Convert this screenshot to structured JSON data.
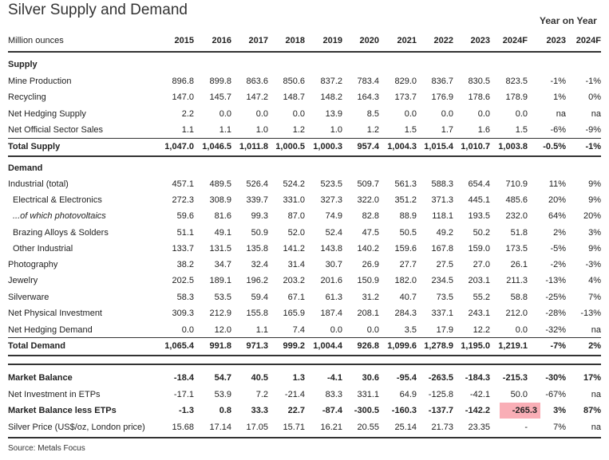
{
  "title": "Silver Supply and Demand",
  "yoy_header": "Year on Year",
  "header": {
    "label": "Million ounces",
    "years": [
      "2015",
      "2016",
      "2017",
      "2018",
      "2019",
      "2020",
      "2021",
      "2022",
      "2023",
      "2024F"
    ],
    "yoy": [
      "2023",
      "2024F"
    ]
  },
  "rows": [
    {
      "type": "section",
      "label": "Supply"
    },
    {
      "type": "data",
      "label": "Mine Production",
      "values": [
        "896.8",
        "899.8",
        "863.6",
        "850.6",
        "837.2",
        "783.4",
        "829.0",
        "836.7",
        "830.5",
        "823.5"
      ],
      "yoy": [
        "-1%",
        "-1%"
      ]
    },
    {
      "type": "data",
      "label": "Recycling",
      "values": [
        "147.0",
        "145.7",
        "147.2",
        "148.7",
        "148.2",
        "164.3",
        "173.7",
        "176.9",
        "178.6",
        "178.9"
      ],
      "yoy": [
        "1%",
        "0%"
      ]
    },
    {
      "type": "data",
      "label": "Net Hedging Supply",
      "values": [
        "2.2",
        "0.0",
        "0.0",
        "0.0",
        "13.9",
        "8.5",
        "0.0",
        "0.0",
        "0.0",
        "0.0"
      ],
      "yoy": [
        "na",
        "na"
      ]
    },
    {
      "type": "data",
      "label": "Net Official Sector Sales",
      "values": [
        "1.1",
        "1.1",
        "1.0",
        "1.2",
        "1.0",
        "1.2",
        "1.5",
        "1.7",
        "1.6",
        "1.5"
      ],
      "yoy": [
        "-6%",
        "-9%"
      ]
    },
    {
      "type": "total",
      "label": "Total Supply",
      "values": [
        "1,047.0",
        "1,046.5",
        "1,011.8",
        "1,000.5",
        "1,000.3",
        "957.4",
        "1,004.3",
        "1,015.4",
        "1,010.7",
        "1,003.8"
      ],
      "yoy": [
        "-0.5%",
        "-1%"
      ]
    },
    {
      "type": "section",
      "label": "Demand"
    },
    {
      "type": "data",
      "label": "Industrial (total)",
      "values": [
        "457.1",
        "489.5",
        "526.4",
        "524.2",
        "523.5",
        "509.7",
        "561.3",
        "588.3",
        "654.4",
        "710.9"
      ],
      "yoy": [
        "11%",
        "9%"
      ]
    },
    {
      "type": "sub",
      "label": "Electrical & Electronics",
      "values": [
        "272.3",
        "308.9",
        "339.7",
        "331.0",
        "327.3",
        "322.0",
        "351.2",
        "371.3",
        "445.1",
        "485.6"
      ],
      "yoy": [
        "20%",
        "9%"
      ]
    },
    {
      "type": "subitalic",
      "label": "...of which photovoltaics",
      "values": [
        "59.6",
        "81.6",
        "99.3",
        "87.0",
        "74.9",
        "82.8",
        "88.9",
        "118.1",
        "193.5",
        "232.0"
      ],
      "yoy": [
        "64%",
        "20%"
      ]
    },
    {
      "type": "sub",
      "label": "Brazing Alloys & Solders",
      "values": [
        "51.1",
        "49.1",
        "50.9",
        "52.0",
        "52.4",
        "47.5",
        "50.5",
        "49.2",
        "50.2",
        "51.8"
      ],
      "yoy": [
        "2%",
        "3%"
      ]
    },
    {
      "type": "sub",
      "label": "Other Industrial",
      "values": [
        "133.7",
        "131.5",
        "135.8",
        "141.2",
        "143.8",
        "140.2",
        "159.6",
        "167.8",
        "159.0",
        "173.5"
      ],
      "yoy": [
        "-5%",
        "9%"
      ]
    },
    {
      "type": "data",
      "label": "Photography",
      "values": [
        "38.2",
        "34.7",
        "32.4",
        "31.4",
        "30.7",
        "26.9",
        "27.7",
        "27.5",
        "27.0",
        "26.1"
      ],
      "yoy": [
        "-2%",
        "-3%"
      ]
    },
    {
      "type": "data",
      "label": "Jewelry",
      "values": [
        "202.5",
        "189.1",
        "196.2",
        "203.2",
        "201.6",
        "150.9",
        "182.0",
        "234.5",
        "203.1",
        "211.3"
      ],
      "yoy": [
        "-13%",
        "4%"
      ]
    },
    {
      "type": "data",
      "label": "Silverware",
      "values": [
        "58.3",
        "53.5",
        "59.4",
        "67.1",
        "61.3",
        "31.2",
        "40.7",
        "73.5",
        "55.2",
        "58.8"
      ],
      "yoy": [
        "-25%",
        "7%"
      ]
    },
    {
      "type": "data",
      "label": "Net Physical Investment",
      "values": [
        "309.3",
        "212.9",
        "155.8",
        "165.9",
        "187.4",
        "208.1",
        "284.3",
        "337.1",
        "243.1",
        "212.0"
      ],
      "yoy": [
        "-28%",
        "-13%"
      ]
    },
    {
      "type": "data",
      "label": "Net Hedging Demand",
      "values": [
        "0.0",
        "12.0",
        "1.1",
        "7.4",
        "0.0",
        "0.0",
        "3.5",
        "17.9",
        "12.2",
        "0.0"
      ],
      "yoy": [
        "-32%",
        "na"
      ]
    },
    {
      "type": "total",
      "label": "Total Demand",
      "values": [
        "1,065.4",
        "991.8",
        "971.3",
        "999.2",
        "1,004.4",
        "926.8",
        "1,099.6",
        "1,278.9",
        "1,195.0",
        "1,219.1"
      ],
      "yoy": [
        "-7%",
        "2%"
      ]
    },
    {
      "type": "spacer"
    },
    {
      "type": "total-nobar",
      "label": "Market Balance",
      "values": [
        "-18.4",
        "54.7",
        "40.5",
        "1.3",
        "-4.1",
        "30.6",
        "-95.4",
        "-263.5",
        "-184.3",
        "-215.3"
      ],
      "yoy": [
        "-30%",
        "17%"
      ]
    },
    {
      "type": "data",
      "label": "Net Investment in ETPs",
      "values": [
        "-17.1",
        "53.9",
        "7.2",
        "-21.4",
        "83.3",
        "331.1",
        "64.9",
        "-125.8",
        "-42.1",
        "50.0"
      ],
      "yoy": [
        "-67%",
        "na"
      ]
    },
    {
      "type": "total-nobar",
      "label": "Market Balance less ETPs",
      "values": [
        "-1.3",
        "0.8",
        "33.3",
        "22.7",
        "-87.4",
        "-300.5",
        "-160.3",
        "-137.7",
        "-142.2",
        "-265.3"
      ],
      "yoy": [
        "3%",
        "87%"
      ],
      "highlight": 9
    },
    {
      "type": "data",
      "label": "Silver Price (US$/oz, London price)",
      "values": [
        "15.68",
        "17.14",
        "17.05",
        "15.71",
        "16.21",
        "20.55",
        "25.14",
        "21.73",
        "23.35",
        "-"
      ],
      "yoy": [
        "7%",
        "na"
      ]
    }
  ],
  "source": "Source: Metals Focus",
  "colors": {
    "highlight": "#f9aeb6",
    "rule": "#333333",
    "text": "#222222"
  }
}
